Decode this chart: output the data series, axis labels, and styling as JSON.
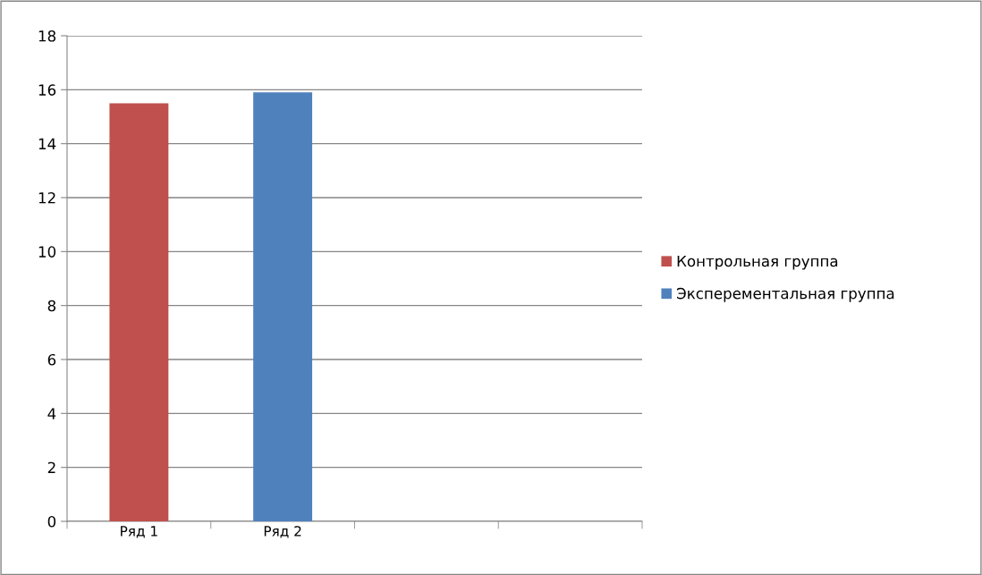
{
  "chart_data": {
    "type": "bar",
    "stacked": true,
    "categories": [
      "Ряд 1",
      "Ряд 2",
      null,
      null
    ],
    "series": [
      {
        "name": "Контрольная группа",
        "color": "#c0504d",
        "values": [
          15.5,
          null,
          null,
          null
        ]
      },
      {
        "name": "Эксперементальная группа",
        "color": "#4f81bd",
        "values": [
          null,
          15.9,
          null,
          null
        ]
      }
    ],
    "ylim": [
      0,
      18
    ],
    "yticks": [
      0,
      2,
      4,
      6,
      8,
      10,
      12,
      14,
      16,
      18
    ],
    "grid": "y",
    "legend": "right"
  }
}
